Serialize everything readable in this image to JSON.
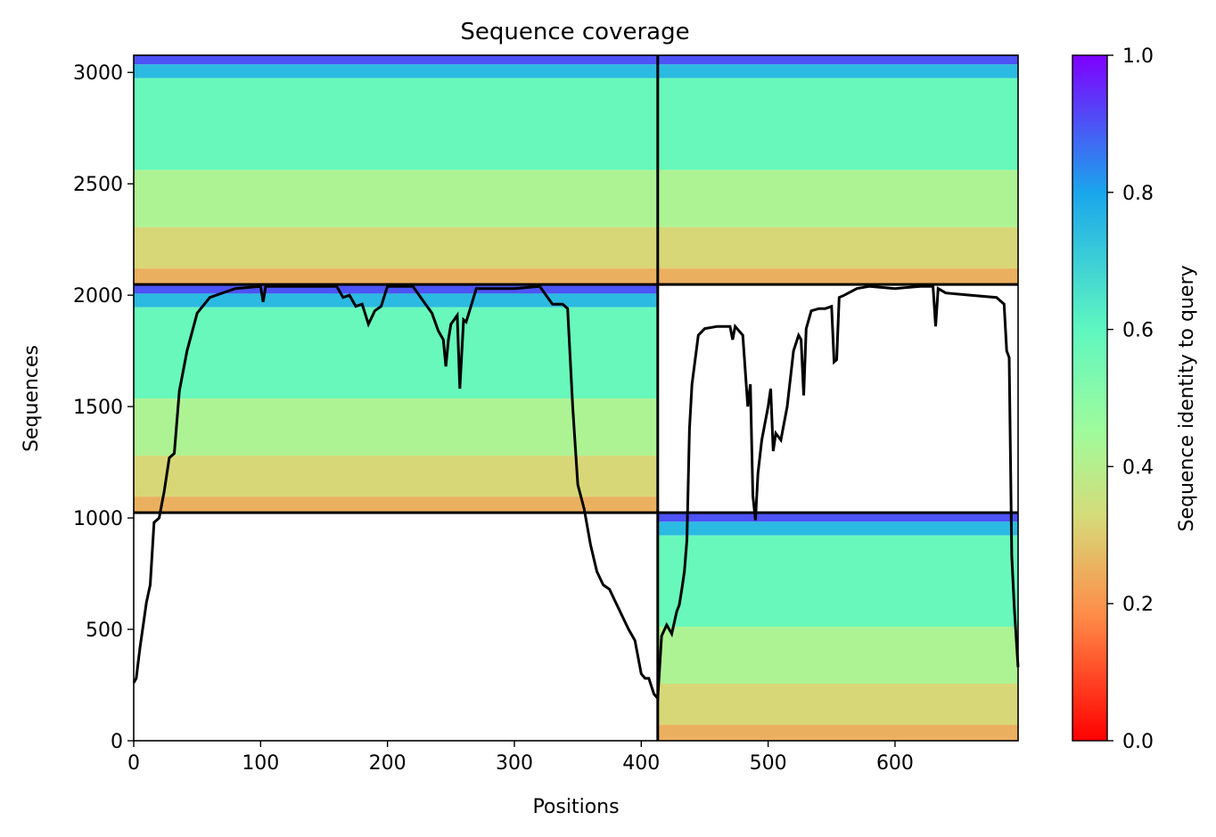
{
  "chart_data": {
    "type": "heatmap",
    "title": "Sequence coverage",
    "xlabel": "Positions",
    "ylabel": "Sequences",
    "xlim": [
      0,
      697
    ],
    "ylim": [
      0,
      3077
    ],
    "xticks": [
      0,
      100,
      200,
      300,
      400,
      500,
      600
    ],
    "yticks": [
      0,
      500,
      1000,
      1500,
      2000,
      2500,
      3000
    ],
    "chain_breaks_x": [
      413
    ],
    "block_breaks_y": [
      1024,
      2048
    ],
    "colorbar": {
      "label": "Sequence identity to query",
      "range": [
        0,
        1
      ],
      "ticks": [
        0.0,
        0.2,
        0.4,
        0.6,
        0.8,
        1.0
      ],
      "tick_labels": [
        "0.0",
        "0.2",
        "0.4",
        "0.6",
        "0.8",
        "1.0"
      ],
      "colormap": "rainbow_r",
      "stops": [
        "#ff0000",
        "#ff8a47",
        "#d5dc7a",
        "#a0fb9b",
        "#5ff7c0",
        "#1aa6ec",
        "#7f00ff"
      ]
    },
    "blocks": [
      {
        "name": "block-chain1-top",
        "x": [
          0,
          413
        ],
        "y": [
          2048,
          3077
        ],
        "coverage_x": [
          0,
          413
        ]
      },
      {
        "name": "block-chain2-top",
        "x": [
          413,
          697
        ],
        "y": [
          2048,
          3077
        ],
        "coverage_x": [
          413,
          697
        ]
      },
      {
        "name": "block-chain1-mid",
        "x": [
          0,
          413
        ],
        "y": [
          1024,
          2048
        ],
        "coverage_x": [
          0,
          413
        ]
      },
      {
        "name": "block-chain2-bottom",
        "x": [
          413,
          697
        ],
        "y": [
          0,
          1024
        ],
        "coverage_x": [
          413,
          697
        ]
      }
    ],
    "bands": [
      {
        "frac": [
          0.0,
          0.04
        ],
        "identity": 0.9
      },
      {
        "frac": [
          0.04,
          0.1
        ],
        "identity": 0.75
      },
      {
        "frac": [
          0.1,
          0.5
        ],
        "identity": 0.58
      },
      {
        "frac": [
          0.5,
          0.75
        ],
        "identity": 0.42
      },
      {
        "frac": [
          0.75,
          0.93
        ],
        "identity": 0.32
      },
      {
        "frac": [
          0.93,
          1.0
        ],
        "identity": 0.25
      }
    ],
    "coverage_line": {
      "x": [
        0,
        2,
        5,
        8,
        10,
        13,
        16,
        20,
        24,
        28,
        32,
        36,
        42,
        50,
        60,
        80,
        100,
        102,
        104,
        120,
        140,
        160,
        165,
        170,
        175,
        180,
        185,
        190,
        195,
        200,
        210,
        220,
        230,
        235,
        240,
        244,
        246,
        248,
        250,
        255,
        257,
        260,
        262,
        270,
        280,
        300,
        320,
        330,
        338,
        342,
        346,
        350,
        355,
        360,
        365,
        370,
        375,
        380,
        385,
        390,
        395,
        400,
        403,
        406,
        410,
        413,
        416,
        420,
        424,
        428,
        430,
        432,
        434,
        436,
        438,
        440,
        445,
        450,
        460,
        470,
        472,
        474,
        480,
        484,
        486,
        488,
        490,
        492,
        495,
        500,
        502,
        504,
        506,
        510,
        515,
        520,
        524,
        526,
        528,
        530,
        534,
        540,
        545,
        550,
        552,
        554,
        556,
        560,
        570,
        580,
        600,
        620,
        630,
        632,
        634,
        640,
        660,
        680,
        686,
        688,
        690,
        692,
        694,
        697
      ],
      "y": [
        260,
        280,
        420,
        540,
        620,
        700,
        980,
        1000,
        1120,
        1270,
        1290,
        1570,
        1750,
        1920,
        1990,
        2030,
        2040,
        1970,
        2040,
        2040,
        2040,
        2040,
        1990,
        2000,
        1950,
        1960,
        1870,
        1930,
        1950,
        2040,
        2040,
        2040,
        1960,
        1920,
        1840,
        1800,
        1680,
        1800,
        1870,
        1910,
        1580,
        1890,
        1880,
        2030,
        2030,
        2030,
        2040,
        1960,
        1960,
        1940,
        1500,
        1150,
        1040,
        880,
        760,
        700,
        680,
        620,
        560,
        500,
        450,
        300,
        280,
        280,
        210,
        190,
        470,
        520,
        480,
        580,
        610,
        680,
        760,
        900,
        1400,
        1600,
        1820,
        1850,
        1860,
        1860,
        1800,
        1860,
        1820,
        1500,
        1600,
        1100,
        990,
        1200,
        1350,
        1500,
        1580,
        1300,
        1380,
        1350,
        1500,
        1750,
        1820,
        1800,
        1550,
        1850,
        1930,
        1940,
        1940,
        1950,
        1700,
        1710,
        1990,
        2000,
        2030,
        2040,
        2030,
        2040,
        2040,
        1860,
        2030,
        2010,
        2000,
        1990,
        1960,
        1750,
        1720,
        830,
        600,
        330
      ]
    }
  }
}
